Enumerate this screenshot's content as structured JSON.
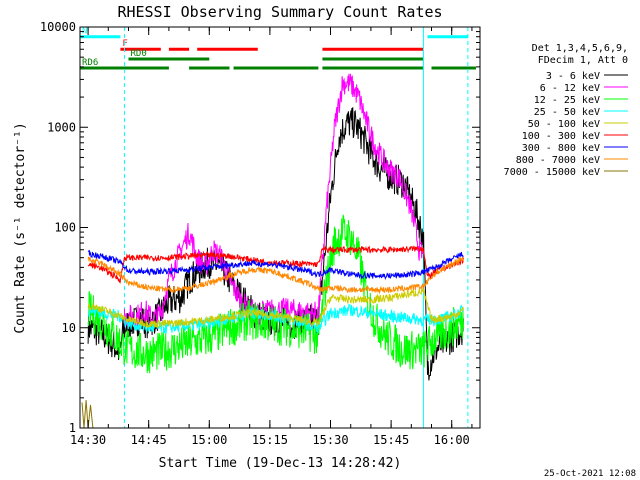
{
  "chart_data": {
    "type": "line",
    "title": "RHESSI Observing Summary Count Rates",
    "xlabel": "Start Time (19-Dec-13 14:28:42)",
    "ylabel": "Count Rate (s⁻¹ detector⁻¹)",
    "y_scale": "log",
    "ylim": [
      1,
      10000
    ],
    "xlim": [
      "14:28",
      "16:07"
    ],
    "x_ticks": [
      "14:30",
      "14:45",
      "15:00",
      "15:15",
      "15:30",
      "15:45",
      "16:00"
    ],
    "y_ticks": [
      "1",
      "10",
      "100",
      "1000",
      "10000"
    ],
    "timestamp": "25-Oct-2021 12:08",
    "legend_title": [
      "Det 1,3,4,5,6,9,",
      "FDecim 1, Att 0"
    ],
    "legend_placement": "right",
    "flags": [
      {
        "label": "N",
        "color": "#00ffff",
        "level": 8000,
        "segments": [
          [
            "14:28",
            "14:38"
          ],
          [
            "15:54",
            "16:04"
          ]
        ]
      },
      {
        "label": "F",
        "color": "#ff0000",
        "level": 6000,
        "segments": [
          [
            "14:38",
            "14:48"
          ],
          [
            "14:50",
            "14:55"
          ],
          [
            "14:57",
            "15:12"
          ],
          [
            "15:28",
            "15:53"
          ]
        ]
      },
      {
        "label": "RD0",
        "color": "#008000",
        "level": 4800,
        "segments": [
          [
            "14:40",
            "15:00"
          ],
          [
            "15:28",
            "15:53"
          ]
        ]
      },
      {
        "label": "RD6",
        "color": "#008000",
        "level": 3900,
        "segments": [
          [
            "14:28",
            "14:50"
          ],
          [
            "14:55",
            "15:05"
          ],
          [
            "15:06",
            "15:27"
          ],
          [
            "15:28",
            "15:53"
          ],
          [
            "15:55",
            "16:06"
          ]
        ]
      }
    ],
    "vlines": [
      {
        "time": "14:28",
        "color": "#00ffff",
        "style": "solid"
      },
      {
        "time": "14:39",
        "color": "#00ffff",
        "style": "dashed"
      },
      {
        "time": "15:53",
        "color": "#00ffff",
        "style": "solid"
      },
      {
        "time": "16:04",
        "color": "#00ffff",
        "style": "dashed"
      }
    ],
    "series": [
      {
        "name": "3 - 6 keV",
        "color": "#000000",
        "noise": 0.16,
        "points": [
          [
            "14:30",
            10
          ],
          [
            "14:33",
            9
          ],
          [
            "14:36",
            7
          ],
          [
            "14:38",
            5.5
          ],
          [
            "14:38.5",
            9
          ],
          [
            "14:40",
            11
          ],
          [
            "14:43",
            12
          ],
          [
            "14:45",
            11
          ],
          [
            "14:48",
            14
          ],
          [
            "14:50",
            18
          ],
          [
            "14:53",
            20
          ],
          [
            "14:55",
            30
          ],
          [
            "14:58",
            40
          ],
          [
            "15:00",
            45
          ],
          [
            "15:03",
            40
          ],
          [
            "15:05",
            30
          ],
          [
            "15:08",
            20
          ],
          [
            "15:11",
            14
          ],
          [
            "15:15",
            12
          ],
          [
            "15:20",
            11
          ],
          [
            "15:25",
            12
          ],
          [
            "15:27",
            12
          ],
          [
            "15:30",
            200
          ],
          [
            "15:32",
            800
          ],
          [
            "15:34",
            1100
          ],
          [
            "15:36",
            1100
          ],
          [
            "15:38",
            800
          ],
          [
            "15:40",
            550
          ],
          [
            "15:42",
            400
          ],
          [
            "15:45",
            320
          ],
          [
            "15:48",
            280
          ],
          [
            "15:51",
            150
          ],
          [
            "15:53",
            80
          ],
          [
            "15:54",
            4
          ],
          [
            "15:56",
            6
          ],
          [
            "16:00",
            8
          ],
          [
            "16:03",
            10
          ]
        ]
      },
      {
        "name": "6 - 12 keV",
        "color": "#ff00ff",
        "noise": 0.12,
        "points": [
          [
            "14:39",
            13
          ],
          [
            "14:42",
            13
          ],
          [
            "14:44",
            15
          ],
          [
            "14:46",
            12
          ],
          [
            "14:48",
            14
          ],
          [
            "14:50",
            30
          ],
          [
            "14:53",
            60
          ],
          [
            "14:55",
            90
          ],
          [
            "14:57",
            50
          ],
          [
            "14:59",
            40
          ],
          [
            "15:01",
            60
          ],
          [
            "15:03",
            50
          ],
          [
            "15:05",
            30
          ],
          [
            "15:08",
            18
          ],
          [
            "15:10",
            15
          ],
          [
            "15:12",
            14
          ],
          [
            "15:15",
            15
          ],
          [
            "15:20",
            15
          ],
          [
            "15:25",
            14
          ],
          [
            "15:27",
            14
          ],
          [
            "15:29",
            150
          ],
          [
            "15:31",
            1000
          ],
          [
            "15:33",
            2800
          ],
          [
            "15:35",
            2700
          ],
          [
            "15:37",
            2000
          ],
          [
            "15:39",
            1100
          ],
          [
            "15:41",
            650
          ],
          [
            "15:44",
            400
          ],
          [
            "15:47",
            320
          ],
          [
            "15:50",
            150
          ],
          [
            "15:52",
            60
          ],
          [
            "15:53",
            50
          ]
        ]
      },
      {
        "name": "12 - 25 keV",
        "color": "#00ff00",
        "noise": 0.2,
        "points": [
          [
            "14:30",
            15
          ],
          [
            "14:33",
            12
          ],
          [
            "14:36",
            9
          ],
          [
            "14:38",
            7
          ],
          [
            "14:40",
            6
          ],
          [
            "14:45",
            5.5
          ],
          [
            "14:50",
            6
          ],
          [
            "14:55",
            7
          ],
          [
            "15:00",
            8
          ],
          [
            "15:05",
            10
          ],
          [
            "15:10",
            12
          ],
          [
            "15:15",
            11
          ],
          [
            "15:20",
            10
          ],
          [
            "15:25",
            9
          ],
          [
            "15:27",
            8
          ],
          [
            "15:29",
            30
          ],
          [
            "15:31",
            70
          ],
          [
            "15:33",
            90
          ],
          [
            "15:35",
            80
          ],
          [
            "15:37",
            50
          ],
          [
            "15:39",
            20
          ],
          [
            "15:41",
            12
          ],
          [
            "15:44",
            8
          ],
          [
            "15:48",
            6
          ],
          [
            "15:53",
            6
          ],
          [
            "15:56",
            8
          ],
          [
            "16:00",
            10
          ],
          [
            "16:03",
            12
          ]
        ]
      },
      {
        "name": "25 - 50 keV",
        "color": "#00ffff",
        "noise": 0.06,
        "points": [
          [
            "14:30",
            15
          ],
          [
            "14:34",
            14
          ],
          [
            "14:38",
            13
          ],
          [
            "14:40",
            11
          ],
          [
            "14:45",
            10
          ],
          [
            "14:50",
            10
          ],
          [
            "14:55",
            10.5
          ],
          [
            "15:00",
            11
          ],
          [
            "15:05",
            12.5
          ],
          [
            "15:10",
            14
          ],
          [
            "15:15",
            13.5
          ],
          [
            "15:20",
            12
          ],
          [
            "15:25",
            10.5
          ],
          [
            "15:27",
            10
          ],
          [
            "15:30",
            14
          ],
          [
            "15:35",
            15
          ],
          [
            "15:40",
            14
          ],
          [
            "15:45",
            13
          ],
          [
            "15:53",
            12
          ],
          [
            "15:56",
            12
          ],
          [
            "16:00",
            13
          ],
          [
            "16:03",
            15
          ]
        ]
      },
      {
        "name": "50 - 100 keV",
        "color": "#cccc00",
        "noise": 0.04,
        "points": [
          [
            "14:30",
            17
          ],
          [
            "14:34",
            15
          ],
          [
            "14:38",
            13
          ],
          [
            "14:40",
            12
          ],
          [
            "14:45",
            11
          ],
          [
            "14:50",
            11
          ],
          [
            "14:55",
            11.5
          ],
          [
            "15:00",
            12
          ],
          [
            "15:05",
            13
          ],
          [
            "15:10",
            14
          ],
          [
            "15:15",
            13.5
          ],
          [
            "15:20",
            12.5
          ],
          [
            "15:25",
            11.5
          ],
          [
            "15:27",
            11
          ],
          [
            "15:30",
            20
          ],
          [
            "15:35",
            19
          ],
          [
            "15:40",
            19
          ],
          [
            "15:45",
            20
          ],
          [
            "15:50",
            22
          ],
          [
            "15:53",
            23
          ],
          [
            "15:55",
            12
          ],
          [
            "16:00",
            13
          ],
          [
            "16:03",
            15
          ]
        ]
      },
      {
        "name": "100 - 300 keV",
        "color": "#ff0000",
        "noise": 0.03,
        "points": [
          [
            "14:30",
            43
          ],
          [
            "14:33",
            40
          ],
          [
            "14:36",
            34
          ],
          [
            "14:38",
            30
          ],
          [
            "14:39",
            50
          ],
          [
            "14:45",
            50
          ],
          [
            "14:50",
            50
          ],
          [
            "14:55",
            52
          ],
          [
            "15:00",
            53
          ],
          [
            "15:05",
            52
          ],
          [
            "15:10",
            48
          ],
          [
            "15:15",
            45
          ],
          [
            "15:20",
            44
          ],
          [
            "15:25",
            43
          ],
          [
            "15:27",
            43
          ],
          [
            "15:28",
            60
          ],
          [
            "15:35",
            60
          ],
          [
            "15:45",
            60
          ],
          [
            "15:53",
            62
          ],
          [
            "15:54",
            32
          ],
          [
            "15:57",
            38
          ],
          [
            "16:00",
            42
          ],
          [
            "16:03",
            47
          ]
        ]
      },
      {
        "name": "300 - 800 keV",
        "color": "#0000ff",
        "noise": 0.03,
        "points": [
          [
            "14:30",
            55
          ],
          [
            "14:33",
            52
          ],
          [
            "14:36",
            48
          ],
          [
            "14:38",
            45
          ],
          [
            "14:40",
            37
          ],
          [
            "14:45",
            36
          ],
          [
            "14:50",
            37
          ],
          [
            "14:55",
            38
          ],
          [
            "15:00",
            40
          ],
          [
            "15:05",
            42
          ],
          [
            "15:10",
            44
          ],
          [
            "15:15",
            43
          ],
          [
            "15:20",
            40
          ],
          [
            "15:25",
            36
          ],
          [
            "15:27",
            34
          ],
          [
            "15:30",
            38
          ],
          [
            "15:35",
            34
          ],
          [
            "15:40",
            33
          ],
          [
            "15:45",
            33
          ],
          [
            "15:50",
            34
          ],
          [
            "15:53",
            36
          ],
          [
            "15:56",
            40
          ],
          [
            "16:00",
            48
          ],
          [
            "16:03",
            55
          ]
        ]
      },
      {
        "name": "800 - 7000 keV",
        "color": "#ff8800",
        "noise": 0.03,
        "points": [
          [
            "14:30",
            48
          ],
          [
            "14:33",
            44
          ],
          [
            "14:36",
            38
          ],
          [
            "14:38",
            34
          ],
          [
            "14:40",
            28
          ],
          [
            "14:45",
            25
          ],
          [
            "14:50",
            24
          ],
          [
            "14:55",
            25
          ],
          [
            "15:00",
            28
          ],
          [
            "15:05",
            33
          ],
          [
            "15:10",
            38
          ],
          [
            "15:15",
            37
          ],
          [
            "15:20",
            32
          ],
          [
            "15:25",
            27
          ],
          [
            "15:27",
            24
          ],
          [
            "15:30",
            25
          ],
          [
            "15:35",
            24
          ],
          [
            "15:40",
            24
          ],
          [
            "15:45",
            24
          ],
          [
            "15:50",
            25
          ],
          [
            "15:53",
            26
          ],
          [
            "15:56",
            35
          ],
          [
            "16:00",
            43
          ],
          [
            "16:03",
            50
          ]
        ]
      },
      {
        "name": "7000 - 15000 keV",
        "color": "#8b7500",
        "noise": 0,
        "points": [
          [
            "14:28.5",
            1.8
          ],
          [
            "14:29",
            1
          ],
          [
            "14:29.5",
            1.9
          ],
          [
            "14:30",
            1
          ],
          [
            "14:30.6",
            1.7
          ],
          [
            "14:31.2",
            1
          ]
        ]
      }
    ]
  }
}
